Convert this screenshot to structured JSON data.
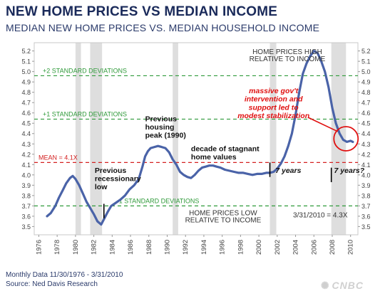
{
  "header": {
    "title": "NEW HOME PRICES VS MEDIAN INCOME",
    "subtitle": "MEDIAN NEW HOME PRICES VS. MEDIAN HOUSEHOLD INCOME"
  },
  "footer": {
    "line1": "Monthly Data 11/30/1976 - 3/31/2010",
    "line2": "Source: Ned Davis Research",
    "logo": "CNBC"
  },
  "colors": {
    "line": "#4a63a8",
    "band": "#dedede",
    "std": "#2f9a3a",
    "mean": "#d42020",
    "annot_red": "#e01010"
  },
  "chart_data": {
    "type": "line",
    "title": "NEW HOME PRICES VS MEDIAN INCOME",
    "xlim": [
      1975.5,
      2010.8
    ],
    "ylim": [
      3.42,
      5.28
    ],
    "x_ticks": [
      1976,
      1978,
      1980,
      1982,
      1984,
      1986,
      1988,
      1990,
      1992,
      1994,
      1996,
      1998,
      2000,
      2002,
      2004,
      2006,
      2008,
      2010
    ],
    "y_ticks": [
      3.5,
      3.6,
      3.7,
      3.8,
      3.9,
      4.0,
      4.1,
      4.2,
      4.3,
      4.4,
      4.5,
      4.6,
      4.7,
      4.8,
      4.9,
      5.0,
      5.1,
      5.2
    ],
    "recessions": [
      [
        1980.0,
        1980.6
      ],
      [
        1981.6,
        1982.9
      ],
      [
        1990.6,
        1991.2
      ],
      [
        2001.2,
        2001.9
      ],
      [
        2007.9,
        2009.5
      ]
    ],
    "reference_lines": [
      {
        "label": "+2 STANDARD DEVIATIONS",
        "value": 4.96,
        "style": "std"
      },
      {
        "label": "+1 STANDARD DEVIATIONS",
        "value": 4.54,
        "style": "std"
      },
      {
        "label": "MEAN = 4.1X",
        "value": 4.12,
        "style": "mean"
      },
      {
        "label": "-1 STANDARD DEVIATIONS",
        "value": 3.7,
        "style": "std"
      }
    ],
    "series": [
      {
        "x": [
          1976.9,
          1977.3,
          1977.8,
          1978.2,
          1978.6,
          1979.0,
          1979.4,
          1979.7,
          1980.0,
          1980.4,
          1980.8,
          1981.2,
          1981.6,
          1982.0,
          1982.4,
          1982.8,
          1983.1,
          1983.5,
          1983.9,
          1984.4,
          1984.9,
          1985.4,
          1985.9,
          1986.4,
          1986.9,
          1987.3,
          1987.6,
          1987.9,
          1988.2,
          1988.6,
          1989.0,
          1989.4,
          1989.8,
          1990.2,
          1990.6,
          1991.0,
          1991.4,
          1991.8,
          1992.2,
          1992.6,
          1993.0,
          1993.4,
          1993.8,
          1994.2,
          1994.6,
          1995.0,
          1995.4,
          1995.8,
          1996.3,
          1996.8,
          1997.3,
          1997.8,
          1998.3,
          1998.8,
          1999.3,
          1999.8,
          2000.3,
          2000.8,
          2001.2,
          2001.6,
          2002.0,
          2002.4,
          2002.8,
          2003.2,
          2003.6,
          2004.0,
          2004.4,
          2004.8,
          2005.2,
          2005.6,
          2006.0,
          2006.4,
          2006.8,
          2007.2,
          2007.6,
          2008.0,
          2008.4,
          2008.8,
          2009.2,
          2009.6,
          2010.0,
          2010.25
        ],
        "y": [
          3.6,
          3.63,
          3.7,
          3.78,
          3.85,
          3.92,
          3.97,
          3.99,
          3.96,
          3.9,
          3.82,
          3.74,
          3.68,
          3.62,
          3.55,
          3.52,
          3.57,
          3.64,
          3.7,
          3.73,
          3.76,
          3.8,
          3.86,
          3.9,
          3.96,
          4.08,
          4.18,
          4.23,
          4.26,
          4.27,
          4.28,
          4.27,
          4.26,
          4.22,
          4.15,
          4.1,
          4.03,
          4.0,
          3.98,
          3.97,
          4.0,
          4.04,
          4.07,
          4.08,
          4.09,
          4.09,
          4.08,
          4.07,
          4.05,
          4.04,
          4.03,
          4.02,
          4.02,
          4.01,
          4.0,
          4.01,
          4.01,
          4.02,
          4.02,
          4.03,
          4.06,
          4.11,
          4.18,
          4.28,
          4.4,
          4.58,
          4.8,
          4.98,
          5.08,
          5.15,
          5.2,
          5.18,
          5.1,
          5.0,
          4.85,
          4.65,
          4.5,
          4.4,
          4.34,
          4.32,
          4.33,
          4.32
        ]
      }
    ],
    "annotations": [
      {
        "text": "HOME PRICES HIGH",
        "x": 2003.1,
        "y": 5.17,
        "color": "#333333",
        "weight": "normal",
        "anchor": "middle"
      },
      {
        "text": "RELATIVE TO INCOME",
        "x": 2003.1,
        "y": 5.1,
        "color": "#333333",
        "weight": "normal",
        "anchor": "middle"
      },
      {
        "text": "massive gov't",
        "x": 2001.6,
        "y": 4.79,
        "color": "#e01010",
        "weight": "bold",
        "style": "italic",
        "anchor": "middle"
      },
      {
        "text": "intervention and",
        "x": 2001.6,
        "y": 4.71,
        "color": "#e01010",
        "weight": "bold",
        "style": "italic",
        "anchor": "middle"
      },
      {
        "text": "support led to",
        "x": 2001.6,
        "y": 4.63,
        "color": "#e01010",
        "weight": "bold",
        "style": "italic",
        "anchor": "middle"
      },
      {
        "text": "modest stabilization",
        "x": 2001.6,
        "y": 4.55,
        "color": "#e01010",
        "weight": "bold",
        "style": "italic",
        "anchor": "middle"
      },
      {
        "text": "Previous",
        "x": 1987.6,
        "y": 4.52,
        "color": "#111111",
        "weight": "bold",
        "anchor": "start"
      },
      {
        "text": "housing",
        "x": 1987.6,
        "y": 4.44,
        "color": "#111111",
        "weight": "bold",
        "anchor": "start"
      },
      {
        "text": "peak (1990)",
        "x": 1987.6,
        "y": 4.36,
        "color": "#111111",
        "weight": "bold",
        "anchor": "start"
      },
      {
        "text": "decade of stagnant",
        "x": 1992.6,
        "y": 4.23,
        "color": "#111111",
        "weight": "bold",
        "anchor": "start"
      },
      {
        "text": "home values",
        "x": 1992.6,
        "y": 4.15,
        "color": "#111111",
        "weight": "bold",
        "anchor": "start"
      },
      {
        "text": "Previous",
        "x": 1982.1,
        "y": 4.02,
        "color": "#111111",
        "weight": "bold",
        "anchor": "start"
      },
      {
        "text": "recessionary",
        "x": 1982.1,
        "y": 3.94,
        "color": "#111111",
        "weight": "bold",
        "anchor": "start"
      },
      {
        "text": "low",
        "x": 1982.1,
        "y": 3.86,
        "color": "#111111",
        "weight": "bold",
        "anchor": "start"
      },
      {
        "text": "7 years",
        "x": 2001.8,
        "y": 4.02,
        "color": "#111111",
        "weight": "bold",
        "style": "italic",
        "anchor": "start"
      },
      {
        "text": "7 years?",
        "x": 2008.2,
        "y": 4.02,
        "color": "#111111",
        "weight": "bold",
        "style": "italic",
        "anchor": "start"
      },
      {
        "text": "HOME PRICES LOW",
        "x": 1996.1,
        "y": 3.61,
        "color": "#333333",
        "weight": "normal",
        "anchor": "middle"
      },
      {
        "text": "RELATIVE TO INCOME",
        "x": 1996.1,
        "y": 3.54,
        "color": "#333333",
        "weight": "normal",
        "anchor": "middle"
      },
      {
        "text": "3/31/2010 = 4.3X",
        "x": 2006.7,
        "y": 3.59,
        "color": "#333333",
        "weight": "normal",
        "anchor": "middle"
      }
    ],
    "markers": [
      {
        "x": 1983.1,
        "y1": 3.72,
        "y2": 3.58
      },
      {
        "x": 2001.2,
        "y1": 4.12,
        "y2": 3.98
      },
      {
        "x": 2007.9,
        "y1": 4.07,
        "y2": 3.93
      }
    ]
  }
}
